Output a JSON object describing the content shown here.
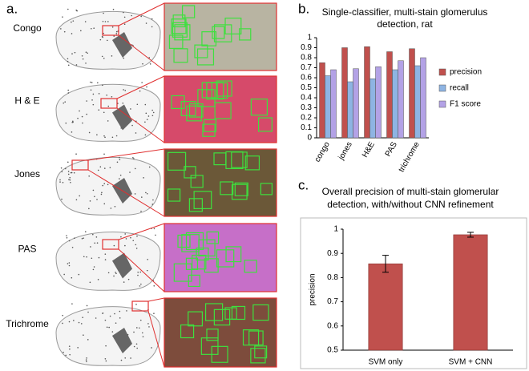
{
  "panel_labels": [
    "a.",
    "b.",
    "c."
  ],
  "stains": [
    "Congo",
    "H & E",
    "Jones",
    "PAS",
    "Trichrome"
  ],
  "chart_data": [
    {
      "type": "bar",
      "title": "Single-classifier, multi-stain glomerulus detection, rat",
      "categories": [
        "congo",
        "jones",
        "H&E",
        "PAS",
        "trichrome"
      ],
      "series": [
        {
          "name": "precision",
          "color": "#c0504d",
          "values": [
            0.75,
            0.9,
            0.91,
            0.86,
            0.89
          ]
        },
        {
          "name": "recall",
          "color": "#8eb4e3",
          "values": [
            0.62,
            0.56,
            0.59,
            0.68,
            0.72
          ]
        },
        {
          "name": "F1 score",
          "color": "#b3a2e6",
          "values": [
            0.68,
            0.69,
            0.71,
            0.77,
            0.8
          ]
        }
      ],
      "ylim": [
        0,
        1
      ],
      "yticks": [
        0,
        0.1,
        0.2,
        0.3,
        0.4,
        0.5,
        0.6,
        0.7,
        0.8,
        0.9,
        1
      ],
      "legend": "right"
    },
    {
      "type": "bar",
      "title": "Overall precision of multi-stain glomerular detection, with/without CNN refinement",
      "y_label": "precision",
      "categories": [
        "SVM only",
        "SVM + CNN"
      ],
      "values": [
        0.857,
        0.977
      ],
      "errors": [
        0.035,
        0.01
      ],
      "color": "#c0504d",
      "ylim": [
        0.5,
        1
      ],
      "yticks": [
        0.5,
        0.6,
        0.7,
        0.8,
        0.9,
        1
      ]
    }
  ]
}
